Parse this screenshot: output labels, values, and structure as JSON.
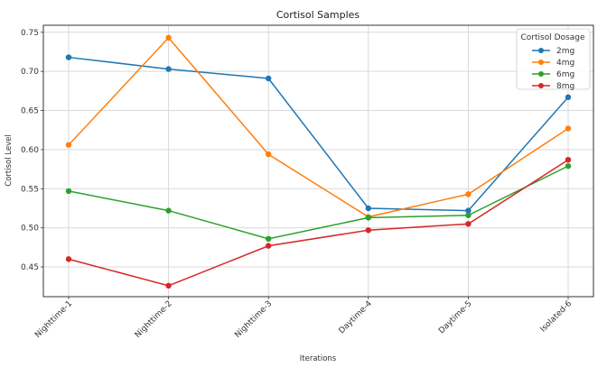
{
  "chart_data": {
    "type": "line",
    "title": "Cortisol Samples",
    "xlabel": "Iterations",
    "ylabel": "Cortisol Level",
    "categories": [
      "Nighttime-1",
      "Nighttime-2",
      "Nighttime-3",
      "Daytime-4",
      "Daytime-5",
      "Isolated-6"
    ],
    "ylim": [
      0.412,
      0.759
    ],
    "yticks": [
      0.45,
      0.5,
      0.55,
      0.6,
      0.65,
      0.7,
      0.75
    ],
    "ytick_labels": [
      "0.45",
      "0.50",
      "0.55",
      "0.60",
      "0.65",
      "0.70",
      "0.75"
    ],
    "grid": true,
    "legend": {
      "title": "Cortisol Dosage",
      "placement": "top-right"
    },
    "series": [
      {
        "name": "2mg",
        "color": "#1f77b4",
        "values": [
          0.718,
          0.703,
          0.691,
          0.525,
          0.522,
          0.667
        ]
      },
      {
        "name": "4mg",
        "color": "#ff7f0e",
        "values": [
          0.606,
          0.743,
          0.594,
          0.514,
          0.543,
          0.627
        ]
      },
      {
        "name": "6mg",
        "color": "#2ca02c",
        "values": [
          0.547,
          0.522,
          0.486,
          0.513,
          0.516,
          0.579
        ]
      },
      {
        "name": "8mg",
        "color": "#d62728",
        "values": [
          0.46,
          0.426,
          0.477,
          0.497,
          0.505,
          0.587
        ]
      }
    ]
  }
}
